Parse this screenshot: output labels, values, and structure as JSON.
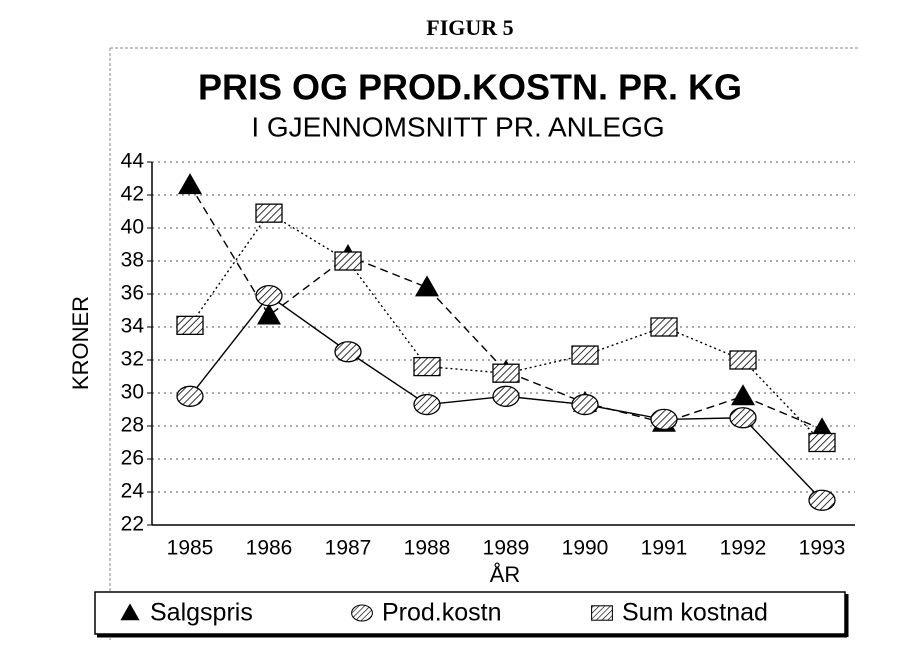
{
  "chart_data": {
    "type": "line",
    "header": "FIGUR 5",
    "title": "PRIS OG PROD.KOSTN. PR. KG",
    "subtitle": "I GJENNOMSNITT PR. ANLEGG",
    "x_label": "ÅR",
    "y_label": "KRONER",
    "categories": [
      "1985",
      "1986",
      "1987",
      "1988",
      "1989",
      "1990",
      "1991",
      "1992",
      "1993"
    ],
    "series": [
      {
        "name": "Salgspris",
        "color": "#000000",
        "marker": "triangle",
        "line": "dashed",
        "values": [
          42.6,
          34.7,
          38.3,
          36.4,
          31.3,
          29.4,
          28.2,
          29.8,
          27.8
        ]
      },
      {
        "name": "Prod.kostn",
        "color": "#000000",
        "marker": "circle",
        "line": "solid",
        "values": [
          29.8,
          35.9,
          32.5,
          29.3,
          29.8,
          29.3,
          28.4,
          28.5,
          23.5
        ]
      },
      {
        "name": "Sum kostnad",
        "color": "#000000",
        "marker": "square",
        "line": "dotted",
        "values": [
          34.1,
          40.9,
          38.0,
          31.6,
          31.2,
          32.3,
          34.0,
          32.0,
          27.0
        ]
      }
    ],
    "ylim": [
      22,
      44
    ],
    "yticks": [
      22,
      24,
      26,
      28,
      30,
      32,
      34,
      36,
      38,
      40,
      42,
      44
    ],
    "grid": true,
    "legend": "bottom"
  }
}
